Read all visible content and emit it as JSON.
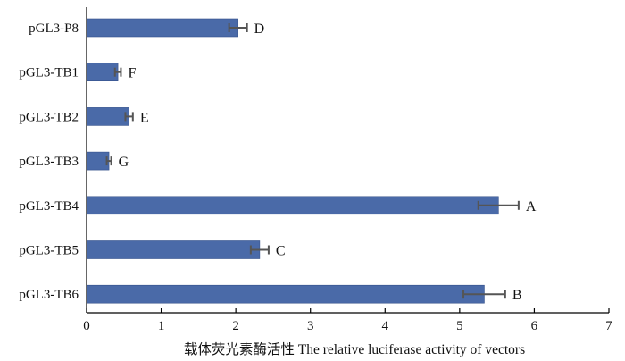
{
  "chart_data": {
    "type": "bar",
    "orientation": "horizontal",
    "categories": [
      "pGL3-P8",
      "pGL3-TB1",
      "pGL3-TB2",
      "pGL3-TB3",
      "pGL3-TB4",
      "pGL3-TB5",
      "pGL3-TB6"
    ],
    "values": [
      2.03,
      0.42,
      0.57,
      0.3,
      5.52,
      2.32,
      5.33
    ],
    "errors": [
      0.12,
      0.04,
      0.05,
      0.03,
      0.27,
      0.12,
      0.28
    ],
    "significance_labels": [
      "D",
      "F",
      "E",
      "G",
      "A",
      "C",
      "B"
    ],
    "xlabel": "载体荧光素酶活性 The relative luciferase activity of vectors",
    "ylabel": "",
    "xlim": [
      0,
      7
    ],
    "xticks": [
      "0",
      "1",
      "2",
      "3",
      "4",
      "5",
      "6",
      "7"
    ],
    "grid": false,
    "bar_color": "#4a6aa8",
    "error_bar_color": "#555555"
  }
}
